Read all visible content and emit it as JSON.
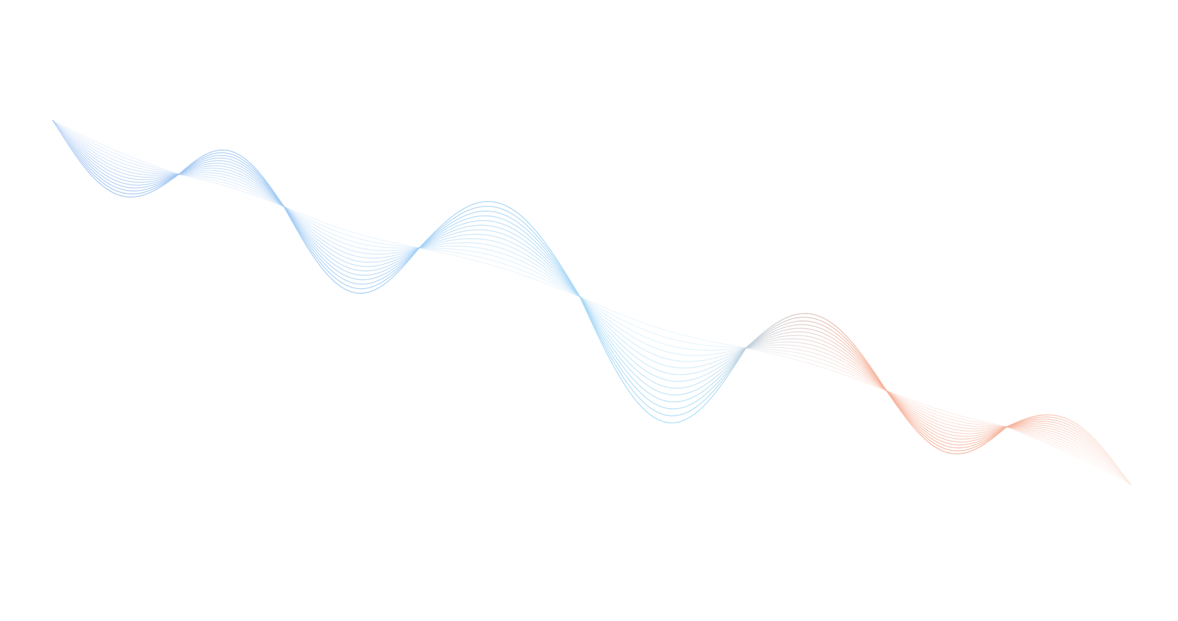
{
  "background_color": "#ffffff",
  "wave": {
    "line_count": 14,
    "colors": {
      "start": "#9fc2f3",
      "middle": "#a6dcf7",
      "end": "#f6b29a"
    }
  }
}
